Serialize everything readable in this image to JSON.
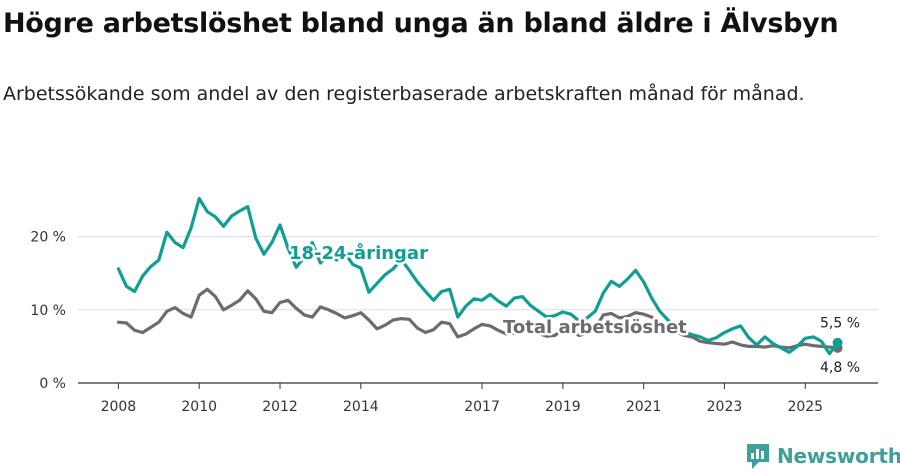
{
  "title": "Högre arbetslöshet bland unga än bland äldre i Älvsbyn",
  "subtitle": "Arbetssökande som andel av den registerbaserade arbetskraften månad för månad.",
  "brand": "Newsworthy",
  "colors": {
    "youth": "#0f9e93",
    "total": "#6d6a70",
    "grid": "#dddddd",
    "brand": "#3f9f99"
  },
  "chart_data": {
    "type": "line",
    "title": "Högre arbetslöshet bland unga än bland äldre i Älvsbyn",
    "xlabel": "",
    "ylabel": "",
    "xlim": [
      2007.0,
      2026.8
    ],
    "ylim": [
      0,
      25
    ],
    "y_ticks": [
      0,
      10,
      20
    ],
    "y_tick_labels": [
      "0 %",
      "10 %",
      "20 %"
    ],
    "x_ticks": [
      2008,
      2010,
      2012,
      2014,
      2017,
      2019,
      2021,
      2023,
      2025
    ],
    "x_tick_labels": [
      "2008",
      "2010",
      "2012",
      "2014",
      "2017",
      "2019",
      "2021",
      "2023",
      "2025"
    ],
    "grid": true,
    "series": [
      {
        "name": "Total arbetslöshet",
        "color": "#6d6a70",
        "end_label": "4,8 %",
        "x": [
          2008.0,
          2008.2,
          2008.4,
          2008.6,
          2008.8,
          2009.0,
          2009.2,
          2009.4,
          2009.6,
          2009.8,
          2010.0,
          2010.2,
          2010.4,
          2010.6,
          2010.8,
          2011.0,
          2011.2,
          2011.4,
          2011.6,
          2011.8,
          2012.0,
          2012.2,
          2012.4,
          2012.6,
          2012.8,
          2013.0,
          2013.2,
          2013.4,
          2013.6,
          2013.8,
          2014.0,
          2014.2,
          2014.4,
          2014.6,
          2014.8,
          2015.0,
          2015.2,
          2015.4,
          2015.6,
          2015.8,
          2016.0,
          2016.2,
          2016.4,
          2016.6,
          2016.8,
          2017.0,
          2017.2,
          2017.4,
          2017.6,
          2017.8,
          2018.0,
          2018.2,
          2018.4,
          2018.6,
          2018.8,
          2019.0,
          2019.2,
          2019.4,
          2019.6,
          2019.8,
          2020.0,
          2020.2,
          2020.4,
          2020.6,
          2020.8,
          2021.0,
          2021.2,
          2021.4,
          2021.6,
          2021.8,
          2022.0,
          2022.2,
          2022.4,
          2022.6,
          2022.8,
          2023.0,
          2023.2,
          2023.4,
          2023.6,
          2023.8,
          2024.0,
          2024.2,
          2024.4,
          2024.6,
          2024.8,
          2025.0,
          2025.2,
          2025.4,
          2025.6,
          2025.8
        ],
        "values": [
          8.3,
          8.2,
          7.2,
          6.9,
          7.6,
          8.3,
          9.8,
          10.3,
          9.5,
          9.0,
          12.0,
          12.8,
          11.8,
          10.0,
          10.6,
          11.3,
          12.6,
          11.5,
          9.8,
          9.6,
          11.0,
          11.3,
          10.2,
          9.3,
          9.0,
          10.4,
          10.0,
          9.5,
          8.9,
          9.2,
          9.6,
          8.6,
          7.4,
          7.9,
          8.6,
          8.8,
          8.7,
          7.5,
          6.9,
          7.3,
          8.3,
          8.1,
          6.3,
          6.7,
          7.4,
          8.0,
          7.8,
          7.2,
          6.7,
          6.8,
          7.2,
          7.0,
          6.8,
          6.4,
          6.5,
          7.3,
          7.1,
          6.5,
          6.8,
          7.4,
          9.3,
          9.5,
          8.9,
          9.1,
          9.6,
          9.4,
          9.0,
          8.0,
          7.5,
          7.0,
          6.5,
          6.3,
          5.7,
          5.5,
          5.4,
          5.3,
          5.6,
          5.2,
          5.0,
          5.0,
          4.9,
          5.1,
          4.9,
          4.8,
          5.1,
          5.3,
          5.1,
          5.0,
          4.9,
          4.8
        ]
      },
      {
        "name": "18-24-åringar",
        "color": "#0f9e93",
        "end_label": "5,5 %",
        "x": [
          2008.0,
          2008.2,
          2008.4,
          2008.6,
          2008.8,
          2009.0,
          2009.2,
          2009.4,
          2009.6,
          2009.8,
          2010.0,
          2010.2,
          2010.4,
          2010.6,
          2010.8,
          2011.0,
          2011.2,
          2011.4,
          2011.6,
          2011.8,
          2012.0,
          2012.2,
          2012.4,
          2012.6,
          2012.8,
          2013.0,
          2013.2,
          2013.4,
          2013.6,
          2013.8,
          2014.0,
          2014.2,
          2014.4,
          2014.6,
          2014.8,
          2015.0,
          2015.2,
          2015.4,
          2015.6,
          2015.8,
          2016.0,
          2016.2,
          2016.4,
          2016.6,
          2016.8,
          2017.0,
          2017.2,
          2017.4,
          2017.6,
          2017.8,
          2018.0,
          2018.2,
          2018.4,
          2018.6,
          2018.8,
          2019.0,
          2019.2,
          2019.4,
          2019.6,
          2019.8,
          2020.0,
          2020.2,
          2020.4,
          2020.6,
          2020.8,
          2021.0,
          2021.2,
          2021.4,
          2021.6,
          2021.8,
          2022.0,
          2022.2,
          2022.4,
          2022.6,
          2022.8,
          2023.0,
          2023.2,
          2023.4,
          2023.6,
          2023.8,
          2024.0,
          2024.2,
          2024.4,
          2024.6,
          2024.8,
          2025.0,
          2025.2,
          2025.4,
          2025.6,
          2025.8
        ],
        "values": [
          15.6,
          13.2,
          12.5,
          14.6,
          15.9,
          16.8,
          20.6,
          19.2,
          18.5,
          21.2,
          25.2,
          23.4,
          22.7,
          21.4,
          22.8,
          23.5,
          24.1,
          19.8,
          17.6,
          19.2,
          21.6,
          18.4,
          15.8,
          17.2,
          19.2,
          16.4,
          17.5,
          16.8,
          17.8,
          16.2,
          15.7,
          12.4,
          13.6,
          14.8,
          15.6,
          16.9,
          15.4,
          13.8,
          12.5,
          11.3,
          12.5,
          12.8,
          9.0,
          10.5,
          11.5,
          11.3,
          12.1,
          11.2,
          10.5,
          11.6,
          11.8,
          10.6,
          9.8,
          9.0,
          9.2,
          9.7,
          9.4,
          8.5,
          8.9,
          9.8,
          12.3,
          13.9,
          13.2,
          14.2,
          15.4,
          13.8,
          11.6,
          9.8,
          8.6,
          7.6,
          7.0,
          6.6,
          6.3,
          5.8,
          6.2,
          6.9,
          7.4,
          7.8,
          6.2,
          5.2,
          6.3,
          5.4,
          4.8,
          4.2,
          5.0,
          6.1,
          6.3,
          5.7,
          4.0,
          5.5
        ]
      }
    ]
  }
}
